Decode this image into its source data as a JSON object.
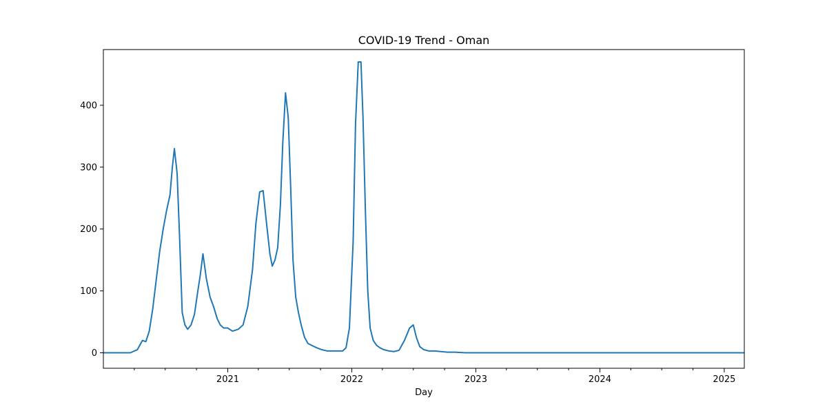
{
  "chart_data": {
    "type": "line",
    "title": "COVID-19 Trend - Oman",
    "xlabel": "Day",
    "ylabel": "",
    "xlim": [
      "2020-01-01",
      "2025-03-01"
    ],
    "ylim": [
      -25,
      490
    ],
    "yticks": [
      0,
      100,
      200,
      300,
      400
    ],
    "xticks_major": [
      "2021-01-01",
      "2022-01-01",
      "2023-01-01",
      "2024-01-01",
      "2025-01-01"
    ],
    "xtick_labels": [
      "2021",
      "2022",
      "2023",
      "2024",
      "2025"
    ],
    "line_color": "#1f77b4",
    "grid": false,
    "legend": "none",
    "series": [
      {
        "x": [
          "2020-01-01",
          "2020-02-15",
          "2020-03-20",
          "2020-04-10",
          "2020-04-25",
          "2020-05-05",
          "2020-05-15",
          "2020-05-25",
          "2020-06-05",
          "2020-06-15",
          "2020-06-25",
          "2020-07-05",
          "2020-07-15",
          "2020-07-22",
          "2020-07-28",
          "2020-08-05",
          "2020-08-12",
          "2020-08-20",
          "2020-08-28",
          "2020-09-05",
          "2020-09-15",
          "2020-09-25",
          "2020-10-05",
          "2020-10-12",
          "2020-10-20",
          "2020-10-30",
          "2020-11-10",
          "2020-11-20",
          "2020-12-01",
          "2020-12-10",
          "2020-12-20",
          "2021-01-01",
          "2021-01-15",
          "2021-02-01",
          "2021-02-15",
          "2021-03-01",
          "2021-03-15",
          "2021-03-25",
          "2021-04-05",
          "2021-04-15",
          "2021-04-25",
          "2021-05-05",
          "2021-05-12",
          "2021-05-20",
          "2021-05-28",
          "2021-06-05",
          "2021-06-12",
          "2021-06-20",
          "2021-06-28",
          "2021-07-05",
          "2021-07-12",
          "2021-07-20",
          "2021-07-28",
          "2021-08-05",
          "2021-08-15",
          "2021-08-25",
          "2021-09-05",
          "2021-09-20",
          "2021-10-05",
          "2021-10-20",
          "2021-11-05",
          "2021-11-20",
          "2021-12-05",
          "2021-12-15",
          "2021-12-25",
          "2022-01-05",
          "2022-01-12",
          "2022-01-20",
          "2022-01-28",
          "2022-02-03",
          "2022-02-10",
          "2022-02-17",
          "2022-02-24",
          "2022-03-05",
          "2022-03-15",
          "2022-03-25",
          "2022-04-05",
          "2022-04-20",
          "2022-05-05",
          "2022-05-20",
          "2022-06-05",
          "2022-06-20",
          "2022-07-01",
          "2022-07-10",
          "2022-07-20",
          "2022-08-01",
          "2022-08-15",
          "2022-09-01",
          "2022-09-20",
          "2022-10-10",
          "2022-11-01",
          "2022-12-01",
          "2023-01-01",
          "2023-01-25",
          "2023-02-15",
          "2024-01-01",
          "2025-03-01"
        ],
        "values": [
          0,
          0,
          0,
          5,
          20,
          18,
          35,
          70,
          120,
          165,
          200,
          230,
          255,
          300,
          330,
          290,
          190,
          65,
          45,
          38,
          45,
          62,
          100,
          125,
          160,
          120,
          90,
          75,
          55,
          45,
          40,
          40,
          35,
          38,
          45,
          75,
          135,
          210,
          260,
          262,
          210,
          160,
          140,
          150,
          170,
          240,
          340,
          420,
          380,
          270,
          150,
          90,
          65,
          45,
          25,
          15,
          12,
          8,
          5,
          3,
          3,
          3,
          3,
          8,
          40,
          180,
          370,
          470,
          470,
          380,
          230,
          100,
          40,
          20,
          12,
          8,
          5,
          3,
          2,
          4,
          20,
          40,
          45,
          25,
          10,
          5,
          3,
          3,
          2,
          1,
          1,
          0,
          0,
          0,
          0,
          0,
          0
        ]
      }
    ]
  }
}
